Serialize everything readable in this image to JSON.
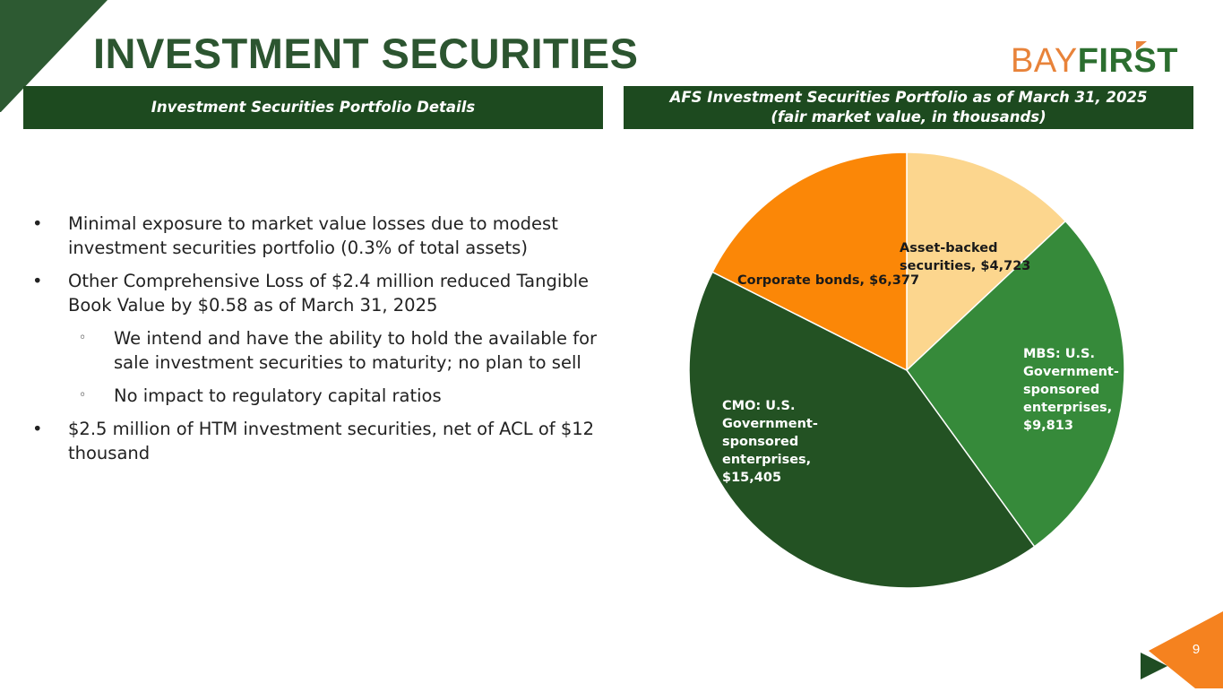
{
  "slide": {
    "title": "INVESTMENT SECURITIES",
    "page_number": "9"
  },
  "logo": {
    "text_bay": "BAY",
    "text_first": "FIRST",
    "colors": {
      "bay": "#e8833a",
      "first": "#2c6e2f"
    }
  },
  "left_panel": {
    "heading": "Investment Securities Portfolio Details",
    "bullets": [
      {
        "level": 1,
        "marker": "•",
        "text": "Minimal exposure to market value losses due to modest investment securities portfolio (0.3% of total assets)"
      },
      {
        "level": 1,
        "marker": "•",
        "text": "Other Comprehensive Loss of $2.4 million reduced Tangible Book Value by $0.58 as of March 31, 2025"
      },
      {
        "level": 2,
        "marker": "◦",
        "text": "We intend and have the ability to hold the available for sale investment securities to maturity; no plan to sell"
      },
      {
        "level": 2,
        "marker": "◦",
        "text": "No impact to regulatory capital ratios"
      },
      {
        "level": 1,
        "marker": "•",
        "text": "$2.5 million of HTM investment securities, net of ACL of $12 thousand"
      }
    ]
  },
  "right_panel": {
    "heading_line1": "AFS Investment Securities Portfolio as of March 31, 2025",
    "heading_line2": "(fair market value, in thousands)"
  },
  "colors": {
    "title": "#2c5530",
    "banner_bg": "#1d4a1f",
    "accent_orange": "#f5821f"
  },
  "chart_data": {
    "type": "pie",
    "start_angle_deg": 0,
    "direction": "clockwise",
    "slices": [
      {
        "label": "Asset-backed securities, $4,723",
        "value": 4723,
        "color": "#fcd68e"
      },
      {
        "label": "MBS: U.S. Government-sponsored enterprises, $9,813",
        "value": 9813,
        "color": "#368a3a"
      },
      {
        "label": "CMO: U.S. Government-sponsored enterprises, $15,405",
        "value": 15405,
        "color": "#235223"
      },
      {
        "label": "Corporate bonds, $6,377",
        "value": 6377,
        "color": "#fb8707"
      }
    ]
  }
}
